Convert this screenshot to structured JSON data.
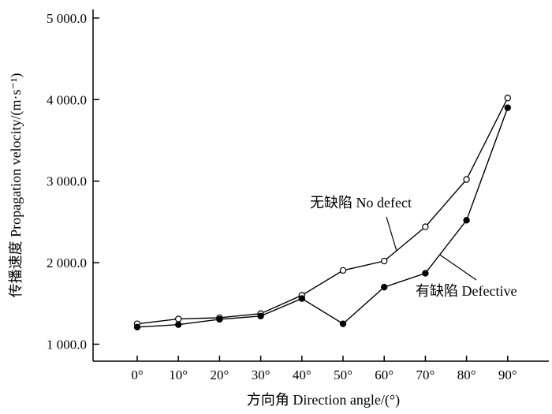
{
  "chart_data": {
    "type": "line",
    "xlabel": "方向角 Direction angle/(°)",
    "ylabel": "传播速度 Propagation velocity/(m·s⁻¹)",
    "categories": [
      "0°",
      "10°",
      "20°",
      "30°",
      "40°",
      "50°",
      "60°",
      "70°",
      "80°",
      "90°"
    ],
    "x": [
      0,
      10,
      20,
      30,
      40,
      50,
      60,
      70,
      80,
      90
    ],
    "ylim": [
      800,
      5200
    ],
    "yticks": [
      1000,
      2000,
      3000,
      4000,
      5000
    ],
    "ytick_labels": [
      "1 000.0",
      "2 000.0",
      "3 000.0",
      "4 000.0",
      "5 000.0"
    ],
    "grid": false,
    "legend": "none",
    "series": [
      {
        "name": "无缺陷 No defect",
        "marker": "open-circle",
        "values": [
          1250,
          1310,
          1325,
          1375,
          1600,
          1905,
          2020,
          2440,
          3020,
          4020
        ]
      },
      {
        "name": "有缺陷 Defective",
        "marker": "filled-circle",
        "values": [
          1210,
          1240,
          1305,
          1345,
          1560,
          1250,
          1700,
          1870,
          2520,
          3900
        ]
      }
    ],
    "annotations": [
      {
        "text": "无缺陷 No defect",
        "series": 0
      },
      {
        "text": "有缺陷 Defective",
        "series": 1
      }
    ],
    "colors": {
      "line": "#000000",
      "background": "#ffffff"
    }
  }
}
